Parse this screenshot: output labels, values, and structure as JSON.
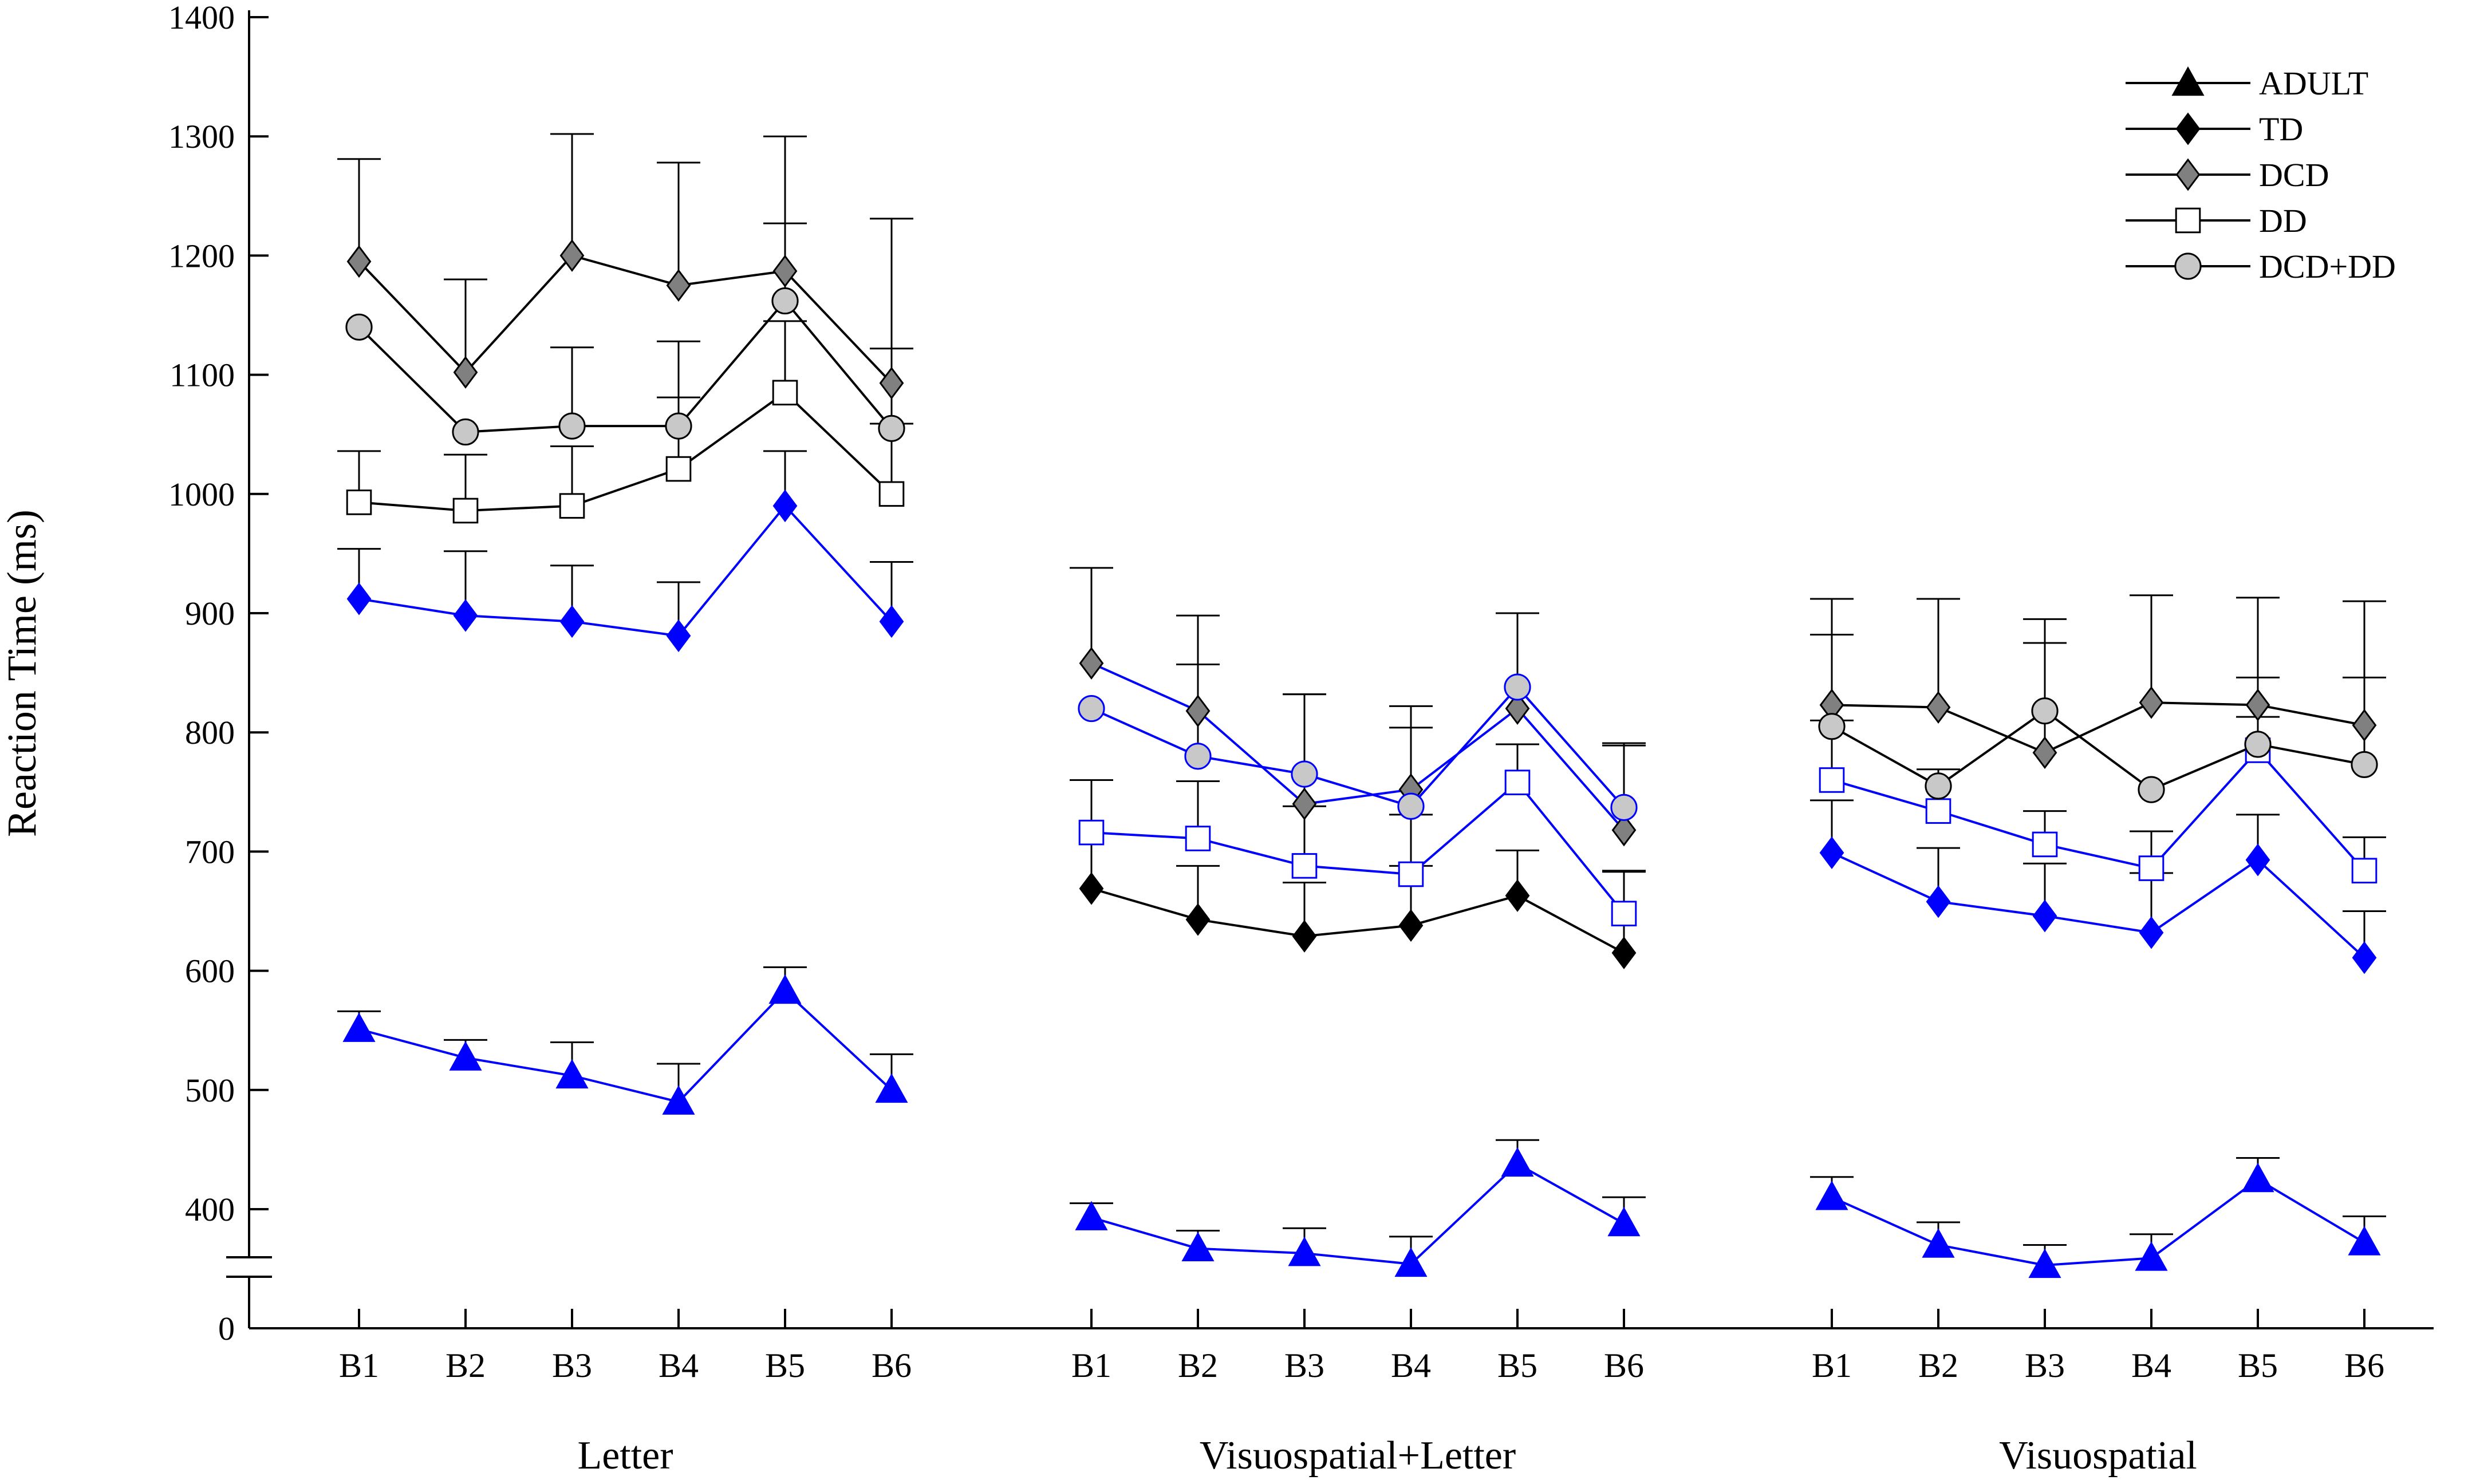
{
  "chart_data": {
    "type": "line",
    "ylabel": "Reaction Time (ms)",
    "yticks": [
      0,
      400,
      500,
      600,
      700,
      800,
      900,
      1000,
      1100,
      1200,
      1300,
      1400
    ],
    "axis_break": "between 0 and 400 ms",
    "ylim": [
      350,
      1400
    ],
    "categories": [
      "B1",
      "B2",
      "B3",
      "B4",
      "B5",
      "B6"
    ],
    "groups": [
      "Letter",
      "Visuospatial+Letter",
      "Visuospatial"
    ],
    "legend_position": "top-right",
    "colors": {
      "blue": "#0000ff",
      "black": "#000000",
      "dark_gray": "#808080",
      "light_gray": "#c8c8c8",
      "white": "#ffffff"
    },
    "series": [
      {
        "name": "ADULT",
        "marker": "triangle",
        "fill": "#000000",
        "values": [
          [
            551,
            527,
            512,
            490,
            583,
            500
          ],
          [
            393,
            367,
            363,
            354,
            438,
            388
          ],
          [
            410,
            370,
            353,
            359,
            425,
            372
          ]
        ],
        "errors": [
          [
            15,
            15,
            28,
            32,
            20,
            30
          ],
          [
            12,
            15,
            21,
            23,
            20,
            22
          ],
          [
            17,
            19,
            17,
            20,
            18,
            22
          ]
        ],
        "line_colors": [
          "#0000ff",
          "#0000ff",
          "#0000ff"
        ],
        "marker_fill_by_group": [
          "#0000ff",
          "#0000ff",
          "#0000ff"
        ]
      },
      {
        "name": "TD",
        "marker": "diamond",
        "fill": "#000000",
        "values": [
          [
            912,
            898,
            893,
            881,
            990,
            893
          ],
          [
            669,
            643,
            629,
            638,
            663,
            615
          ],
          [
            699,
            658,
            646,
            632,
            693,
            611
          ]
        ],
        "errors": [
          [
            42,
            54,
            47,
            45,
            46,
            50
          ],
          [
            91,
            45,
            45,
            50,
            38,
            69
          ],
          [
            44,
            45,
            44,
            50,
            38,
            39
          ]
        ],
        "line_colors": [
          "#0000ff",
          "#000000",
          "#0000ff"
        ],
        "marker_fill_by_group": [
          "#0000ff",
          "#000000",
          "#0000ff"
        ]
      },
      {
        "name": "DCD",
        "marker": "diamond",
        "fill": "#808080",
        "values": [
          [
            1195,
            1102,
            1200,
            1175,
            1187,
            1093
          ],
          [
            858,
            818,
            740,
            752,
            820,
            718
          ],
          [
            823,
            821,
            783,
            825,
            823,
            806
          ]
        ],
        "errors": [
          [
            86,
            78,
            102,
            103,
            113,
            138
          ],
          [
            80,
            80,
            92,
            70,
            80,
            73
          ],
          [
            89,
            91,
            112,
            90,
            90,
            104
          ]
        ],
        "line_colors": [
          "#000000",
          "#0000ff",
          "#000000"
        ],
        "marker_fill_by_group": [
          "#808080",
          "#808080",
          "#808080"
        ]
      },
      {
        "name": "DD",
        "marker": "square",
        "fill": "#ffffff",
        "values": [
          [
            993,
            986,
            990,
            1021,
            1085,
            1000
          ],
          [
            716,
            711,
            688,
            681,
            758,
            648
          ],
          [
            760,
            734,
            706,
            686,
            785,
            684
          ]
        ],
        "errors": [
          [
            43,
            47,
            50,
            60,
            60,
            59
          ],
          [
            44,
            48,
            50,
            50,
            32,
            35
          ],
          [
            50,
            35,
            28,
            31,
            28,
            28
          ]
        ],
        "line_colors": [
          "#000000",
          "#0000ff",
          "#0000ff"
        ],
        "marker_fill_by_group": [
          "#ffffff",
          "#ffffff",
          "#ffffff"
        ]
      },
      {
        "name": "DCD+DD",
        "marker": "circle",
        "fill": "#c8c8c8",
        "values": [
          [
            1140,
            1052,
            1057,
            1057,
            1162,
            1055
          ],
          [
            820,
            780,
            765,
            738,
            838,
            737
          ],
          [
            805,
            755,
            818,
            752,
            790,
            773
          ]
        ],
        "errors": [
          [
            0,
            0,
            66,
            71,
            65,
            67
          ],
          [
            0,
            77,
            67,
            66,
            62,
            52
          ],
          [
            77,
            0,
            57,
            0,
            56,
            73
          ]
        ],
        "line_colors": [
          "#000000",
          "#0000ff",
          "#000000"
        ],
        "marker_fill_by_group": [
          "#c8c8c8",
          "#c8c8c8",
          "#c8c8c8"
        ]
      }
    ]
  }
}
